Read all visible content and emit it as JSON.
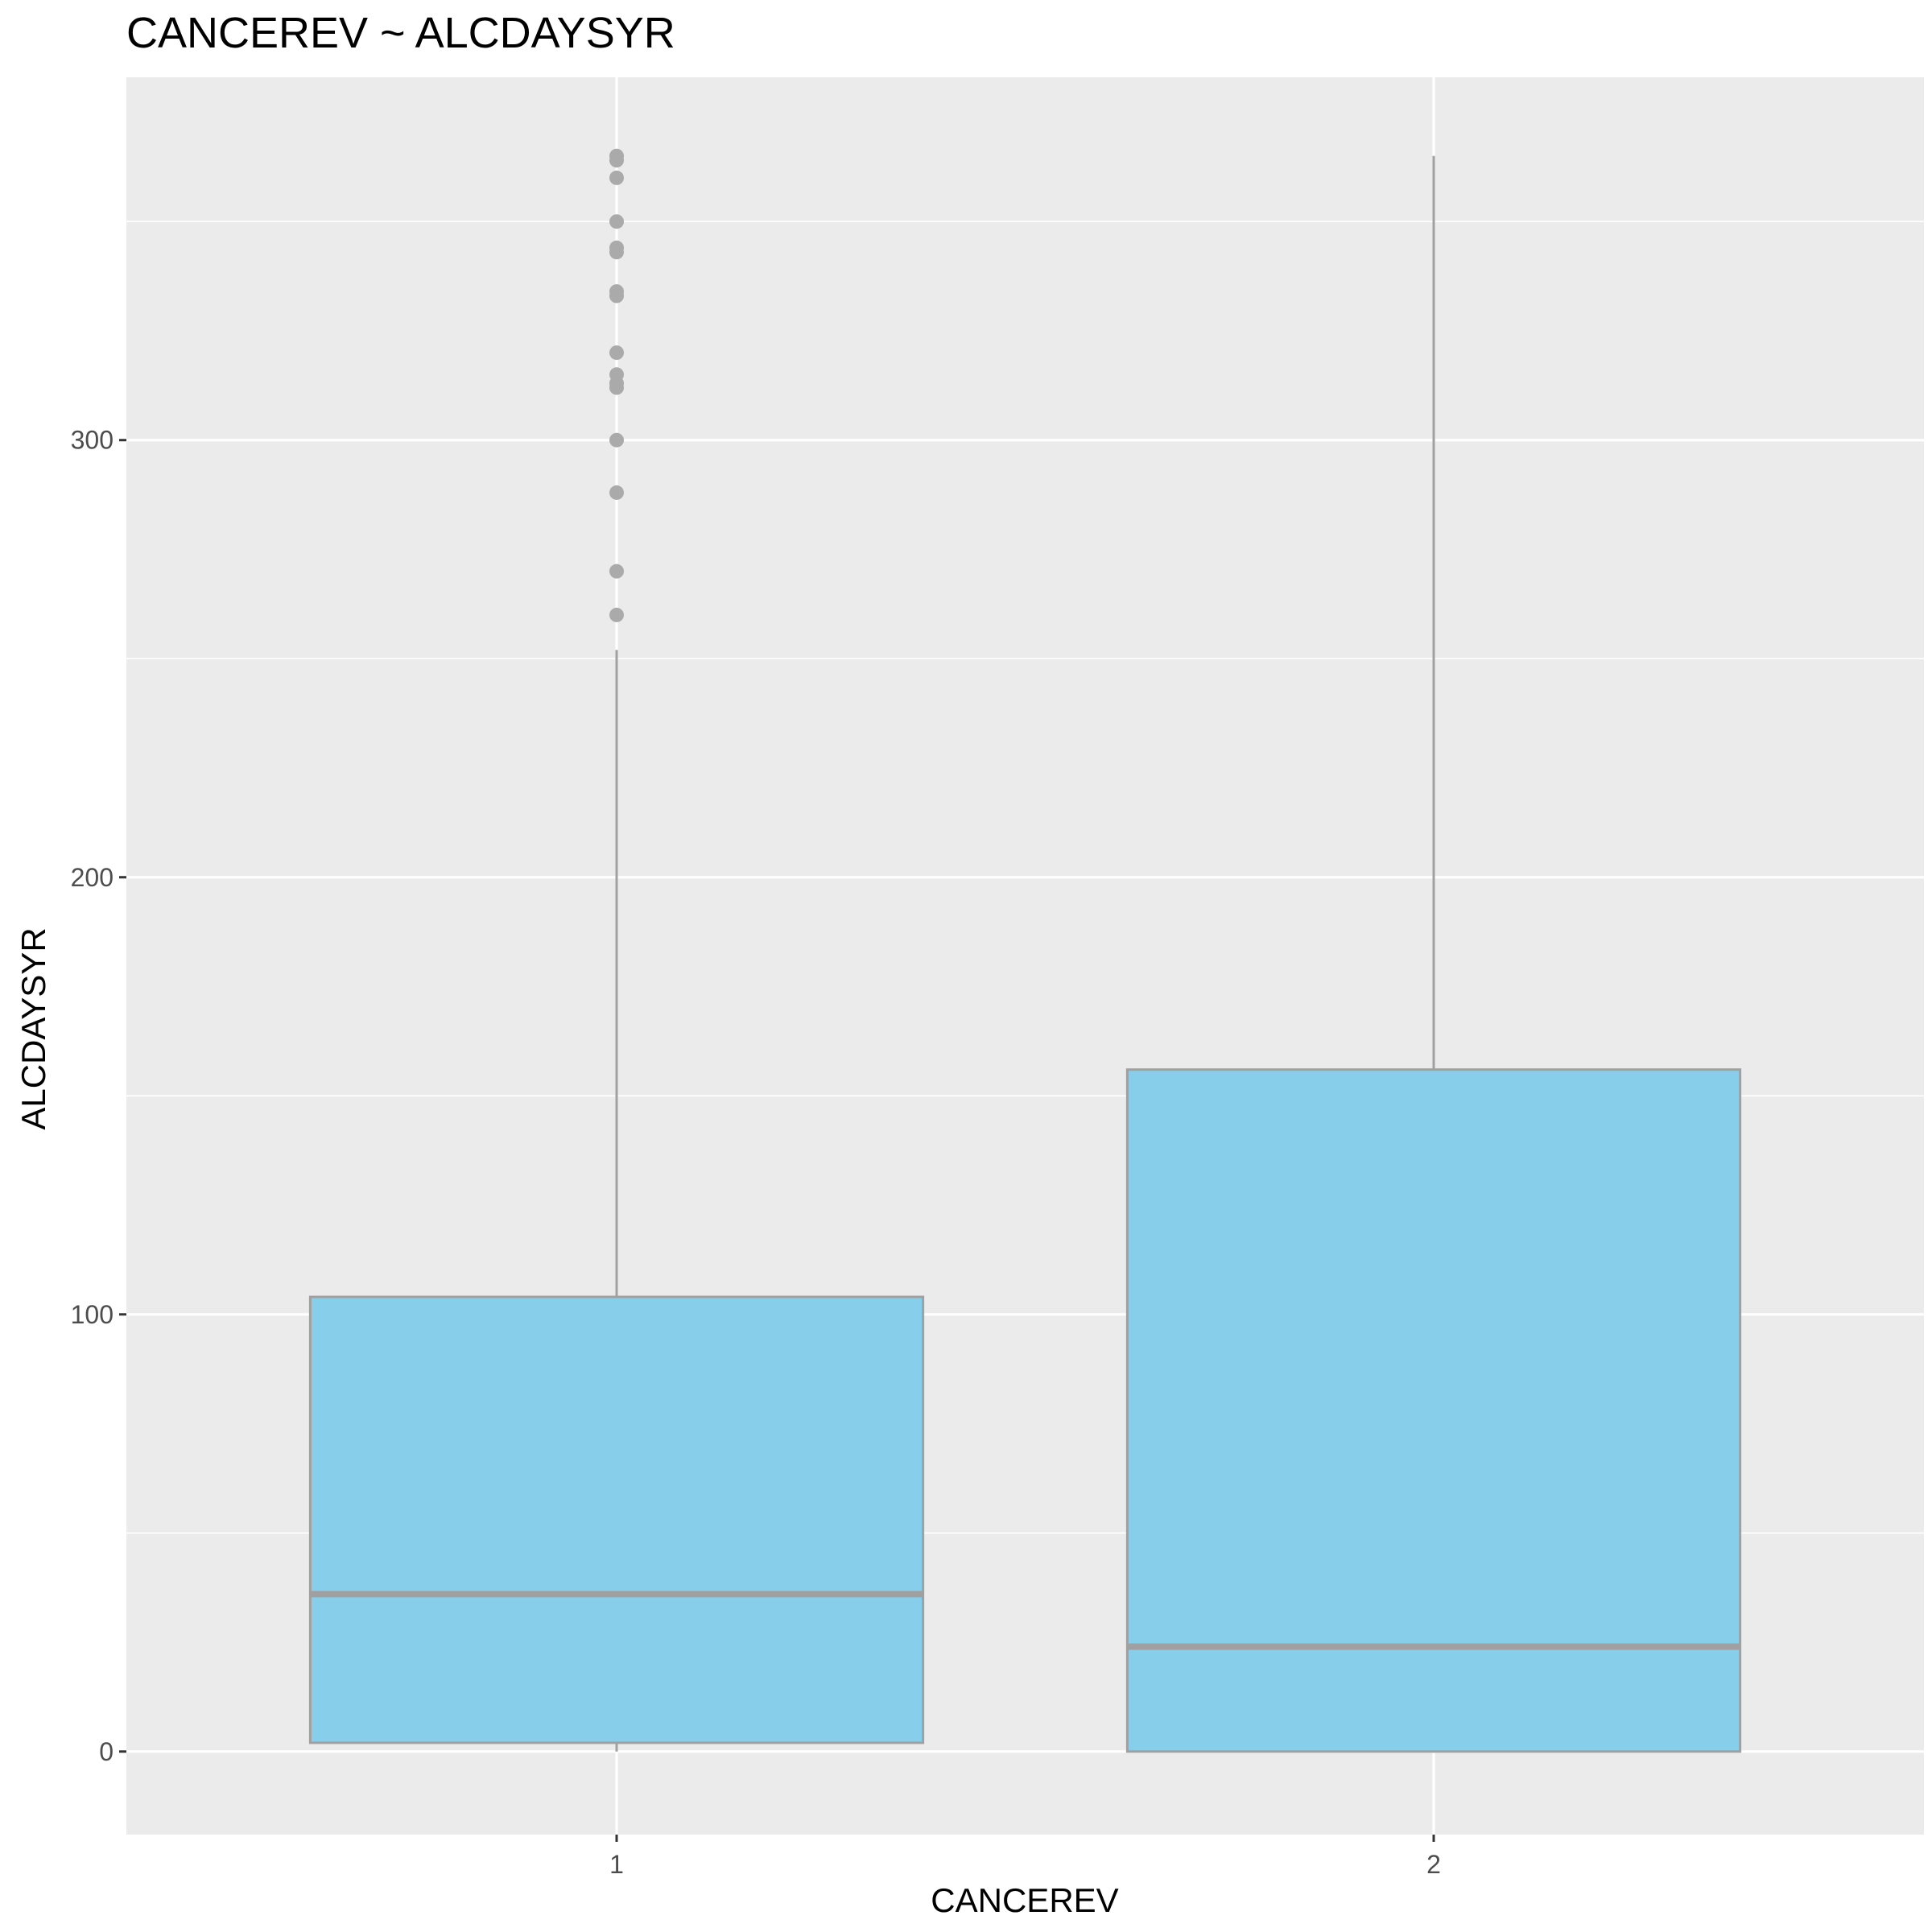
{
  "chart_data": {
    "type": "boxplot",
    "title": "CANCEREV ~ ALCDAYSYR",
    "xlabel": "CANCEREV",
    "ylabel": "ALCDAYSYR",
    "categories": [
      "1",
      "2"
    ],
    "ylim": [
      -19,
      383
    ],
    "y_ticks": [
      0,
      100,
      200,
      300
    ],
    "grid": true,
    "fill_color": "#87CEEB",
    "outline_color": "#A0A0A0",
    "panel_color": "#EBEBEB",
    "boxes": [
      {
        "category": "1",
        "whisker_low": 0,
        "q1": 2,
        "median": 36,
        "q3": 104,
        "whisker_high": 252,
        "outliers": [
          260,
          270,
          288,
          300,
          312,
          313,
          315,
          320,
          333,
          334,
          343,
          344,
          350,
          360,
          364,
          365
        ]
      },
      {
        "category": "2",
        "whisker_low": 0,
        "q1": 0,
        "median": 24,
        "q3": 156,
        "whisker_high": 365,
        "outliers": []
      }
    ]
  }
}
